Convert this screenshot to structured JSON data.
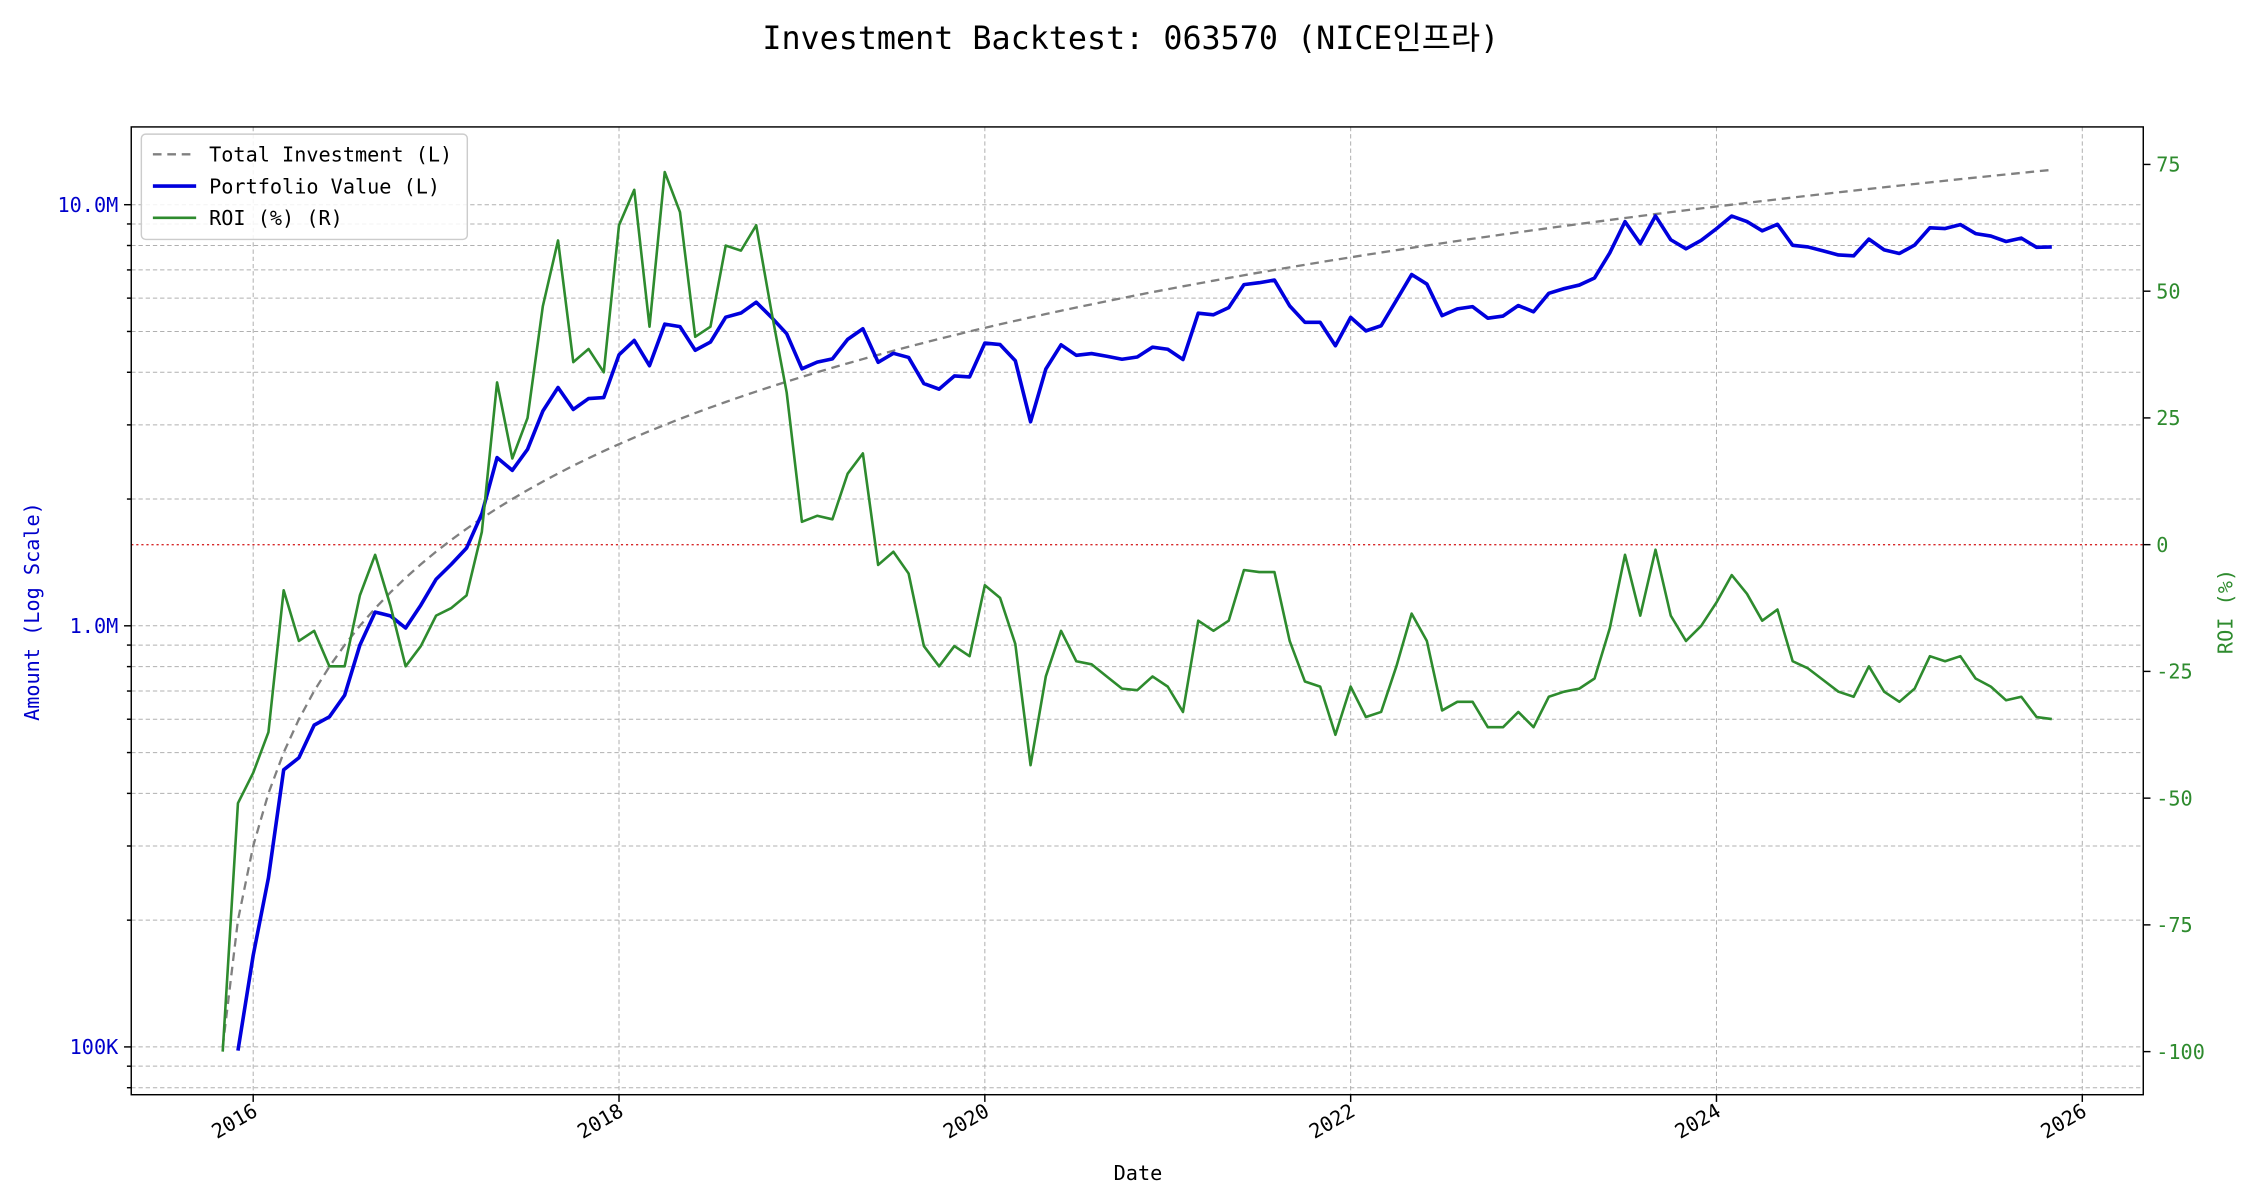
{
  "chart_data": {
    "type": "line",
    "title": "Investment Backtest: 063570 (NICE인프라)",
    "xlabel": "Date",
    "ylabel": "Amount (Log Scale)",
    "y2label": "ROI (%)",
    "ylog": true,
    "grid": true,
    "legend": "upper left",
    "reference_line": {
      "axis": "y2",
      "value": 0,
      "color": "#d62728"
    },
    "xlim": [
      "2015-05",
      "2026-05"
    ],
    "xticks": [
      "2016",
      "2018",
      "2020",
      "2022",
      "2024",
      "2026"
    ],
    "ylim": [
      77000,
      15300000
    ],
    "yticks": [
      {
        "value": 100000,
        "label": "100K"
      },
      {
        "value": 1000000,
        "label": "1.0M"
      },
      {
        "value": 10000000,
        "label": "10.0M"
      }
    ],
    "yminor_ticks": [
      80000,
      90000,
      200000,
      300000,
      400000,
      500000,
      600000,
      700000,
      800000,
      900000,
      2000000,
      3000000,
      4000000,
      5000000,
      6000000,
      7000000,
      8000000,
      9000000
    ],
    "y2lim": [
      -108.5,
      82.4
    ],
    "y2ticks": [
      -100,
      -75,
      -50,
      -25,
      0,
      25,
      50,
      75
    ],
    "x": [
      "2015-11",
      "2015-12",
      "2016-01",
      "2016-02",
      "2016-03",
      "2016-04",
      "2016-05",
      "2016-06",
      "2016-07",
      "2016-08",
      "2016-09",
      "2016-10",
      "2016-11",
      "2016-12",
      "2017-01",
      "2017-02",
      "2017-03",
      "2017-04",
      "2017-05",
      "2017-06",
      "2017-07",
      "2017-08",
      "2017-09",
      "2017-10",
      "2017-11",
      "2017-12",
      "2018-01",
      "2018-02",
      "2018-03",
      "2018-04",
      "2018-05",
      "2018-06",
      "2018-07",
      "2018-08",
      "2018-09",
      "2018-10",
      "2018-11",
      "2018-12",
      "2019-01",
      "2019-02",
      "2019-03",
      "2019-04",
      "2019-05",
      "2019-06",
      "2019-07",
      "2019-08",
      "2019-09",
      "2019-10",
      "2019-11",
      "2019-12",
      "2020-01",
      "2020-02",
      "2020-03",
      "2020-04",
      "2020-05",
      "2020-06",
      "2020-07",
      "2020-08",
      "2020-09",
      "2020-10",
      "2020-11",
      "2020-12",
      "2021-01",
      "2021-02",
      "2021-03",
      "2021-04",
      "2021-05",
      "2021-06",
      "2021-07",
      "2021-08",
      "2021-09",
      "2021-10",
      "2021-11",
      "2021-12",
      "2022-01",
      "2022-02",
      "2022-03",
      "2022-04",
      "2022-05",
      "2022-06",
      "2022-07",
      "2022-08",
      "2022-09",
      "2022-10",
      "2022-11",
      "2022-12",
      "2023-01",
      "2023-02",
      "2023-03",
      "2023-04",
      "2023-05",
      "2023-06",
      "2023-07",
      "2023-08",
      "2023-09",
      "2023-10",
      "2023-11",
      "2023-12",
      "2024-01",
      "2024-02",
      "2024-03",
      "2024-04",
      "2024-05",
      "2024-06",
      "2024-07",
      "2024-08",
      "2024-09",
      "2024-10",
      "2024-11",
      "2024-12",
      "2025-01",
      "2025-02",
      "2025-03",
      "2025-04",
      "2025-05",
      "2025-06",
      "2025-07",
      "2025-08",
      "2025-09",
      "2025-10",
      "2025-11"
    ],
    "series": [
      {
        "name": "Total Investment (L)",
        "color": "#808080",
        "axis": "y",
        "dash": true,
        "values": [
          100000,
          200000,
          300000,
          400000,
          500000,
          600000,
          700000,
          800000,
          900000,
          1000000,
          1100000,
          1200000,
          1300000,
          1400000,
          1500000,
          1600000,
          1700000,
          1800000,
          1900000,
          2000000,
          2100000,
          2200000,
          2300000,
          2400000,
          2500000,
          2600000,
          2700000,
          2800000,
          2900000,
          3000000,
          3100000,
          3200000,
          3300000,
          3400000,
          3500000,
          3600000,
          3700000,
          3800000,
          3900000,
          4000000,
          4100000,
          4200000,
          4300000,
          4400000,
          4500000,
          4600000,
          4700000,
          4800000,
          4900000,
          5000000,
          5100000,
          5200000,
          5300000,
          5400000,
          5500000,
          5600000,
          5700000,
          5800000,
          5900000,
          6000000,
          6100000,
          6200000,
          6300000,
          6400000,
          6500000,
          6600000,
          6700000,
          6800000,
          6900000,
          7000000,
          7100000,
          7200000,
          7300000,
          7400000,
          7500000,
          7600000,
          7700000,
          7800000,
          7900000,
          8000000,
          8100000,
          8200000,
          8300000,
          8400000,
          8500000,
          8600000,
          8700000,
          8800000,
          8900000,
          9000000,
          9100000,
          9200000,
          9300000,
          9400000,
          9500000,
          9600000,
          9700000,
          9800000,
          9900000,
          10000000,
          10100000,
          10200000,
          10300000,
          10400000,
          10500000,
          10600000,
          10700000,
          10800000,
          10900000,
          11000000,
          11100000,
          11200000,
          11300000,
          11400000,
          11500000,
          11600000,
          11700000,
          11800000,
          11900000,
          12000000,
          12100000
        ]
      },
      {
        "name": "Portfolio Value (L)",
        "color": "#0000dd",
        "axis": "y",
        "width": 2.5,
        "values": [
          null,
          98000,
          165000,
          252000,
          455000,
          486000,
          581000,
          608000,
          684000,
          900000,
          1078000,
          1056000,
          988000,
          1120000,
          1290000,
          1400000,
          1530000,
          1845000,
          2508000,
          2340000,
          2625000,
          3234000,
          3680000,
          3264000,
          3465000,
          3484000,
          4401000,
          4760000,
          4147000,
          5205000,
          5134000,
          4512000,
          4719000,
          5406000,
          5530000,
          5868000,
          5402000,
          4940000,
          4076000,
          4228000,
          4305000,
          4788000,
          5074000,
          4224000,
          4437000,
          4338000,
          3760000,
          3648000,
          3920000,
          3900000,
          4692000,
          4654000,
          4261000,
          3051000,
          4070000,
          4648000,
          4389000,
          4431000,
          4366000,
          4296000,
          4349000,
          4588000,
          4536000,
          4288000,
          5525000,
          5478000,
          5695000,
          6460000,
          6527000,
          6622000,
          5751000,
          5256000,
          5256000,
          4625000,
          5400000,
          5016000,
          5159000,
          5928000,
          6826000,
          6480000,
          5451000,
          5658000,
          5727000,
          5376000,
          5440000,
          5762000,
          5568000,
          6160000,
          6319000,
          6444000,
          6698000,
          7682000,
          9114000,
          8084000,
          9405000,
          8256000,
          7857000,
          8232000,
          8771000,
          9400000,
          9120000,
          8670000,
          8982000,
          8008000,
          7938000,
          7770000,
          7597000,
          7560000,
          8284000,
          7810000,
          7659000,
          8019000,
          8814000,
          8778000,
          8970000,
          8538000,
          8424000,
          8177000,
          8330000,
          7920000,
          7938000
        ]
      },
      {
        "name": "ROI (%) (R)",
        "color": "#2e8b2e",
        "axis": "y2",
        "width": 1.8,
        "values": [
          -100,
          -51,
          -45,
          -37,
          -9,
          -19,
          -17,
          -24,
          -24,
          -10,
          -2,
          -12,
          -24,
          -20,
          -14,
          -12.5,
          -10,
          2.5,
          32,
          17,
          25,
          47,
          60,
          36,
          38.6,
          34,
          63,
          70,
          43,
          73.5,
          65.6,
          41,
          43,
          59,
          58,
          63,
          46,
          30,
          4.5,
          5.7,
          5,
          14,
          18,
          -4,
          -1.4,
          -5.7,
          -20,
          -24,
          -20,
          -22,
          -8,
          -10.5,
          -19.6,
          -43.5,
          -26,
          -17,
          -23,
          -23.6,
          -26,
          -28.4,
          -28.7,
          -26,
          -28,
          -33,
          -15,
          -17,
          -15,
          -5,
          -5.4,
          -5.4,
          -19,
          -27,
          -28,
          -37.5,
          -28,
          -34,
          -33,
          -24,
          -13.6,
          -19,
          -32.7,
          -31,
          -31,
          -36,
          -36,
          -33,
          -36,
          -30,
          -29,
          -28.4,
          -26.4,
          -16.5,
          -2,
          -14,
          -1,
          -14,
          -19,
          -16,
          -11.4,
          -6,
          -9.7,
          -15,
          -12.8,
          -23,
          -24.4,
          -26.7,
          -29,
          -30,
          -24,
          -29,
          -31,
          -28.4,
          -22,
          -23,
          -22,
          -26.4,
          -28,
          -30.7,
          -30,
          -34,
          -34.4
        ]
      }
    ]
  }
}
